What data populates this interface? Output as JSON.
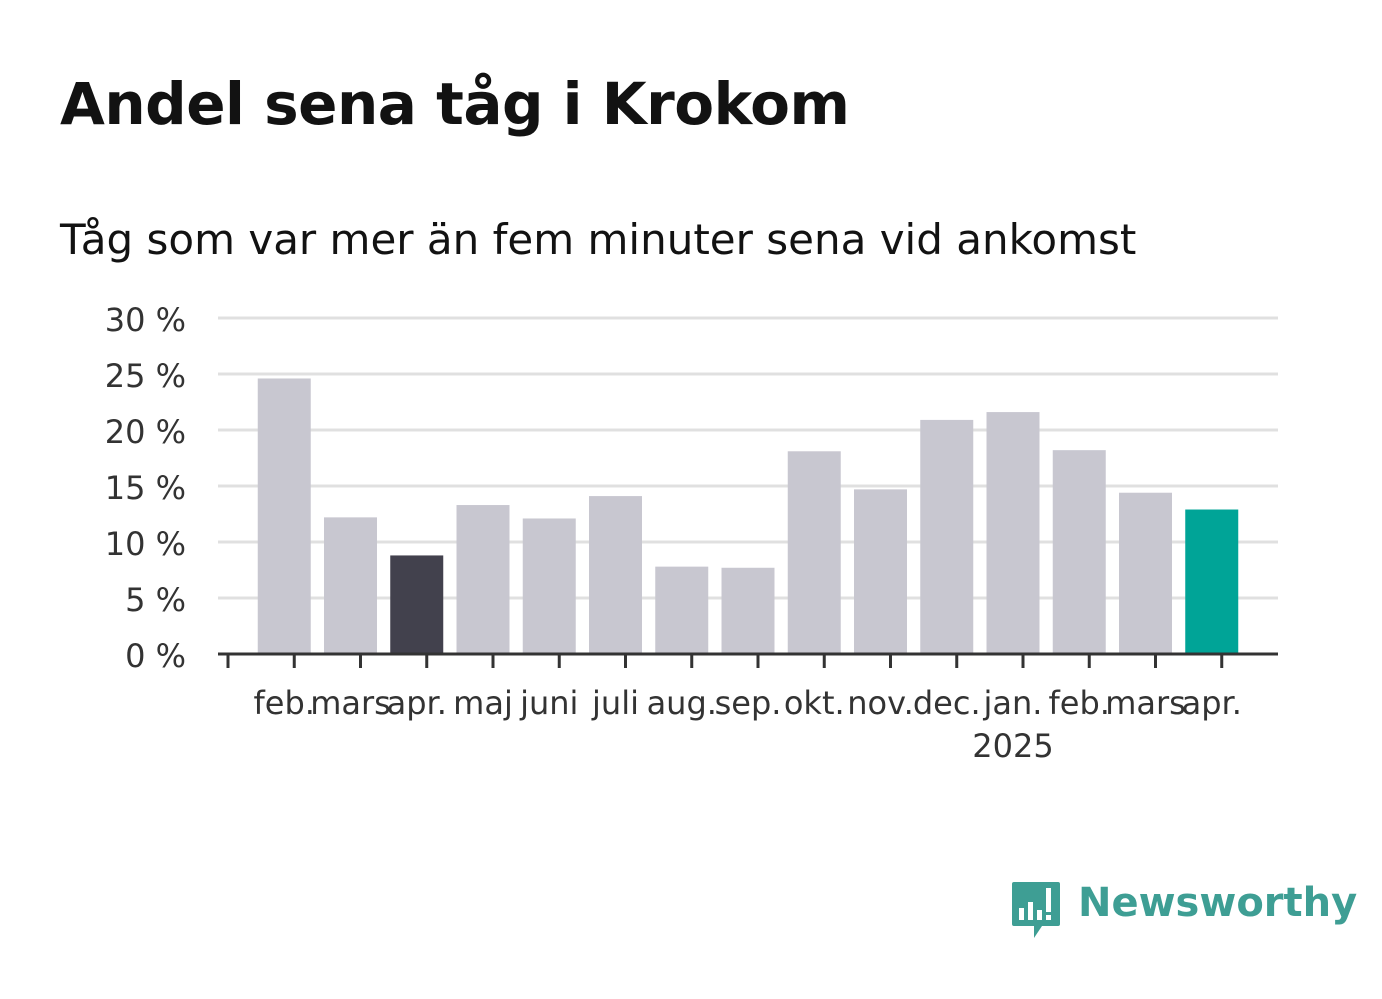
{
  "title": "Andel sena tåg i Krokom",
  "subtitle": "Tåg som var mer än fem minuter sena vid ankomst",
  "brand": {
    "name": "Newsworthy",
    "color": "#3e9e94",
    "icon": "bar-chart-speech-bubble-icon"
  },
  "colors": {
    "default_bar": "#c8c7d0",
    "previous_year_same_month": "#42414d",
    "latest_month": "#00a497",
    "grid": "#e0e0e0",
    "axis": "#333333",
    "text": "#333333"
  },
  "chart_data": {
    "type": "bar",
    "categories": [
      "feb.",
      "mars",
      "apr.",
      "maj",
      "juni",
      "juli",
      "aug.",
      "sep.",
      "okt.",
      "nov.",
      "dec.",
      "jan.",
      "feb.",
      "mars",
      "apr."
    ],
    "year_labels": [
      {
        "index": 11,
        "label": "2025"
      }
    ],
    "values": [
      24.6,
      12.2,
      8.8,
      13.3,
      12.1,
      14.1,
      7.8,
      7.7,
      18.1,
      14.7,
      20.9,
      21.6,
      18.2,
      14.4,
      12.9
    ],
    "bar_roles": [
      "default",
      "default",
      "previous_year_same_month",
      "default",
      "default",
      "default",
      "default",
      "default",
      "default",
      "default",
      "default",
      "default",
      "default",
      "default",
      "latest_month"
    ],
    "y_ticks": [
      0,
      5,
      10,
      15,
      20,
      25,
      30
    ],
    "y_tick_labels": [
      "0 %",
      "5 %",
      "10 %",
      "15 %",
      "20 %",
      "25 %",
      "30 %"
    ],
    "ylim": [
      0,
      30
    ],
    "unit": "%",
    "grid": true,
    "legend": "none"
  }
}
